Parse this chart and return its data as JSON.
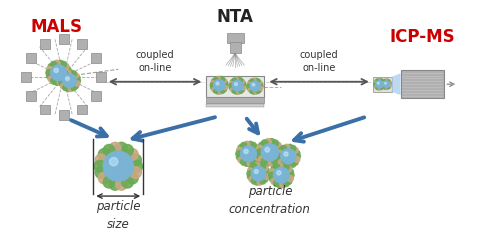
{
  "bg_color": "#ffffff",
  "mals_label": "MALS",
  "nta_label": "NTA",
  "icpms_label": "ICP-MS",
  "coupled_text1": "coupled\non-line",
  "coupled_text2": "coupled\non-line",
  "particle_size_label": "particle\nsize",
  "particle_conc_label": "particle\nconcentration",
  "label_color": "#cc0000",
  "arrow_color": "#3a6fa8",
  "dbl_arrow_color": "#555555",
  "particle_blue": "#7ab3d4",
  "particle_blue2": "#8bbfe0",
  "particle_green": "#6aaa55",
  "particle_green2": "#7abf66",
  "particle_tan": "#c8a882",
  "gray_light": "#d0d0d0",
  "gray_mid": "#b0b0b0",
  "gray_dark": "#888888"
}
